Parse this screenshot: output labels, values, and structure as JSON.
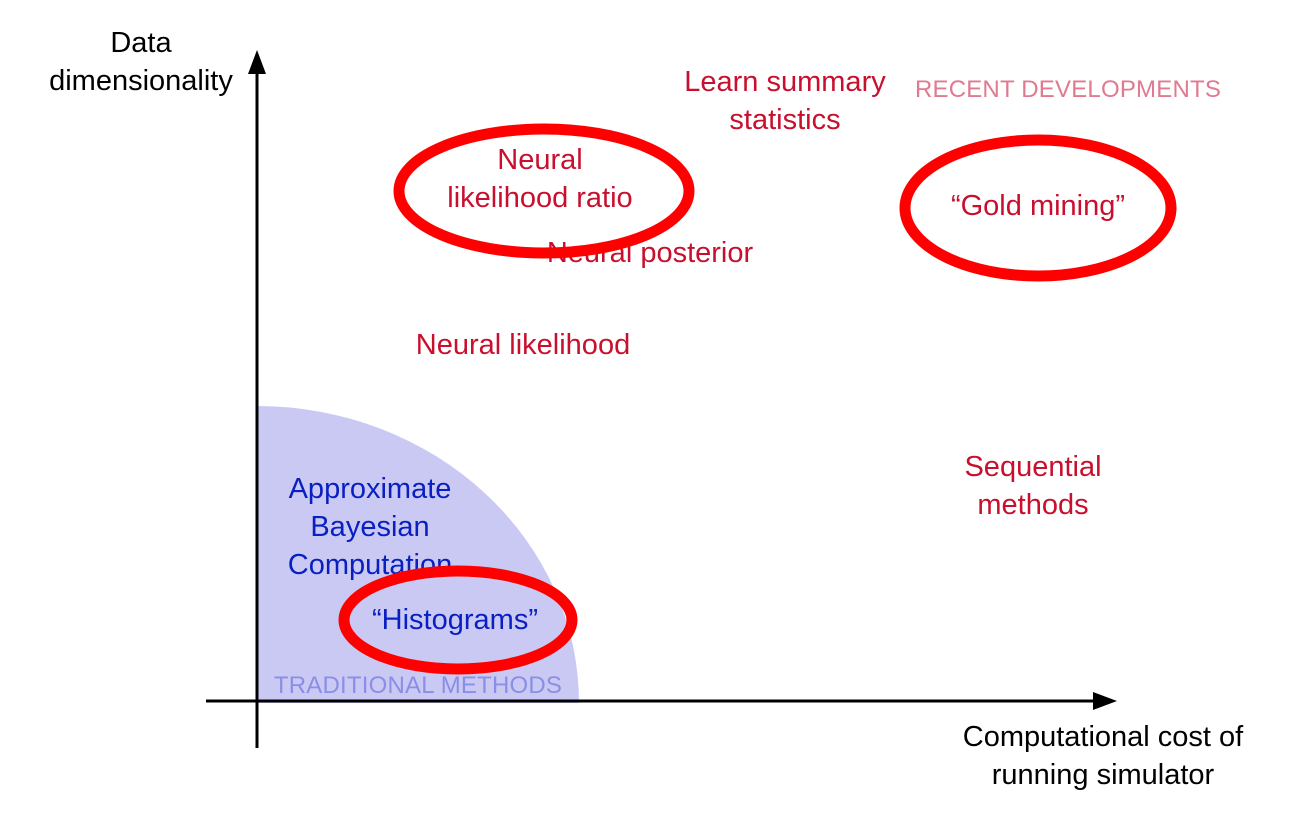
{
  "axes": {
    "y_label": [
      "Data",
      "dimensionality"
    ],
    "x_label": [
      "Computational cost of",
      "running simulator"
    ]
  },
  "regions": {
    "traditional": "TRADITIONAL METHODS",
    "recent": "RECENT DEVELOPMENTS"
  },
  "methods": {
    "abc": [
      "Approximate",
      "Bayesian",
      "Computation"
    ],
    "histograms": "“Histograms”",
    "neural_likelihood_ratio": [
      "Neural",
      "likelihood ratio"
    ],
    "neural_posterior": "Neural posterior",
    "neural_likelihood": "Neural likelihood",
    "learn_summary_statistics": [
      "Learn summary",
      "statistics"
    ],
    "gold_mining": "“Gold mining”",
    "sequential_methods": [
      "Sequential",
      "methods"
    ]
  },
  "colors": {
    "axis": "#000000",
    "traditional_region_fill": "#c9c9f3",
    "traditional_text": "#0a1fc2",
    "recent_text": "#c8102e",
    "recent_caption": "#e07a90",
    "highlight_ring": "#ff0000"
  }
}
